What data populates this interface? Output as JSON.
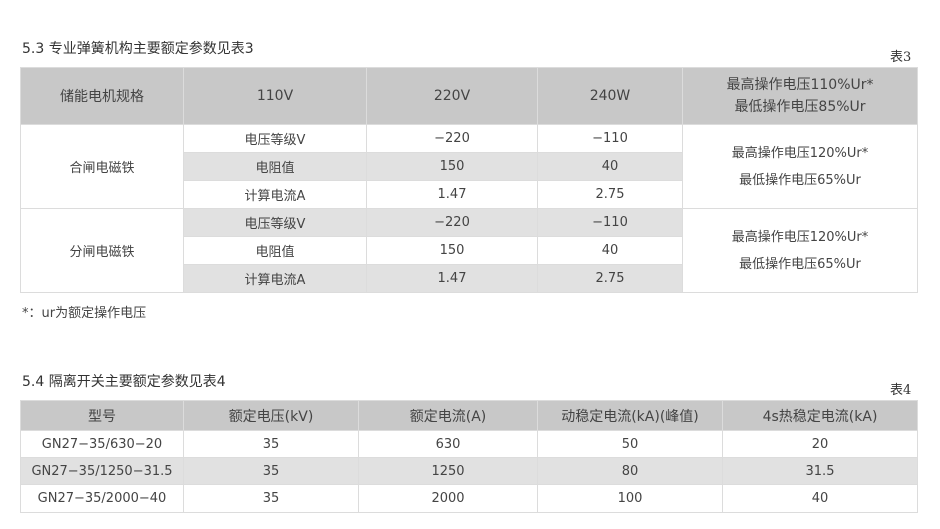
{
  "section53": {
    "title": "5.3  专业弹簧机构主要额定参数见表3",
    "table_label": "表3",
    "header": [
      "储能电机规格",
      "110V",
      "220V",
      "240W"
    ],
    "header_note": [
      "最高操作电压110%Ur*",
      "最低操作电压85%Ur"
    ],
    "groups": [
      {
        "name": "合闸电磁铁",
        "rows": [
          {
            "param": "电压等级V",
            "v220": "−220",
            "v240": "−110"
          },
          {
            "param": "电阻值",
            "v220": "150",
            "v240": "40"
          },
          {
            "param": "计算电流A",
            "v220": "1.47",
            "v240": "2.75"
          }
        ],
        "note": [
          "最高操作电压120%Ur*",
          "最低操作电压65%Ur"
        ]
      },
      {
        "name": "分闸电磁铁",
        "rows": [
          {
            "param": "电压等级V",
            "v220": "−220",
            "v240": "−110"
          },
          {
            "param": "电阻值",
            "v220": "150",
            "v240": "40"
          },
          {
            "param": "计算电流A",
            "v220": "1.47",
            "v240": "2.75"
          }
        ],
        "note": [
          "最高操作电压120%Ur*",
          "最低操作电压65%Ur"
        ]
      }
    ],
    "footnote": "*：ur为额定操作电压"
  },
  "section54": {
    "title": "5.4  隔离开关主要额定参数见表4",
    "table_label": "表4",
    "header": [
      "型号",
      "额定电压(kV)",
      "额定电流(A)",
      "动稳定电流(kA)(峰值)",
      "4s热稳定电流(kA)"
    ],
    "rows": [
      [
        "GN27−35/630−20",
        "35",
        "630",
        "50",
        "20"
      ],
      [
        "GN27−35/1250−31.5",
        "35",
        "1250",
        "80",
        "31.5"
      ],
      [
        "GN27−35/2000−40",
        "35",
        "2000",
        "100",
        "40"
      ]
    ]
  }
}
